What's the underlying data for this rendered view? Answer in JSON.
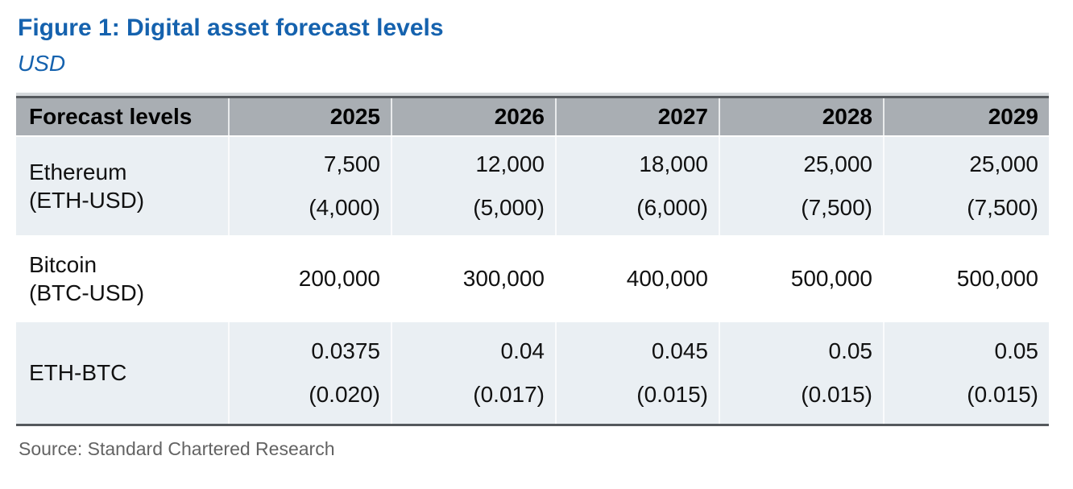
{
  "figure": {
    "title": "Figure 1: Digital asset forecast levels",
    "subtitle": "USD",
    "source": "Source: Standard Chartered Research"
  },
  "colors": {
    "title_blue": "#1562AE",
    "header_bg": "#A9AEB3",
    "row_alt_bg": "#EAEFF3",
    "border_dark": "#55595D",
    "source_gray": "#636363"
  },
  "chart_data": {
    "type": "table",
    "title": "Figure 1: Digital asset forecast levels",
    "unit": "USD",
    "columns": [
      "Forecast levels",
      "2025",
      "2026",
      "2027",
      "2028",
      "2029"
    ],
    "rows": [
      {
        "label": [
          "Ethereum",
          "(ETH-USD)"
        ],
        "values": [
          [
            "7,500",
            "(4,000)"
          ],
          [
            "12,000",
            "(5,000)"
          ],
          [
            "18,000",
            "(6,000)"
          ],
          [
            "25,000",
            "(7,500)"
          ],
          [
            "25,000",
            "(7,500)"
          ]
        ]
      },
      {
        "label": [
          "Bitcoin",
          "(BTC-USD)"
        ],
        "values": [
          [
            "200,000"
          ],
          [
            "300,000"
          ],
          [
            "400,000"
          ],
          [
            "500,000"
          ],
          [
            "500,000"
          ]
        ]
      },
      {
        "label": [
          "ETH-BTC"
        ],
        "values": [
          [
            "0.0375",
            "(0.020)"
          ],
          [
            "0.04",
            "(0.017)"
          ],
          [
            "0.045",
            "(0.015)"
          ],
          [
            "0.05",
            "(0.015)"
          ],
          [
            "0.05",
            "(0.015)"
          ]
        ]
      }
    ]
  }
}
